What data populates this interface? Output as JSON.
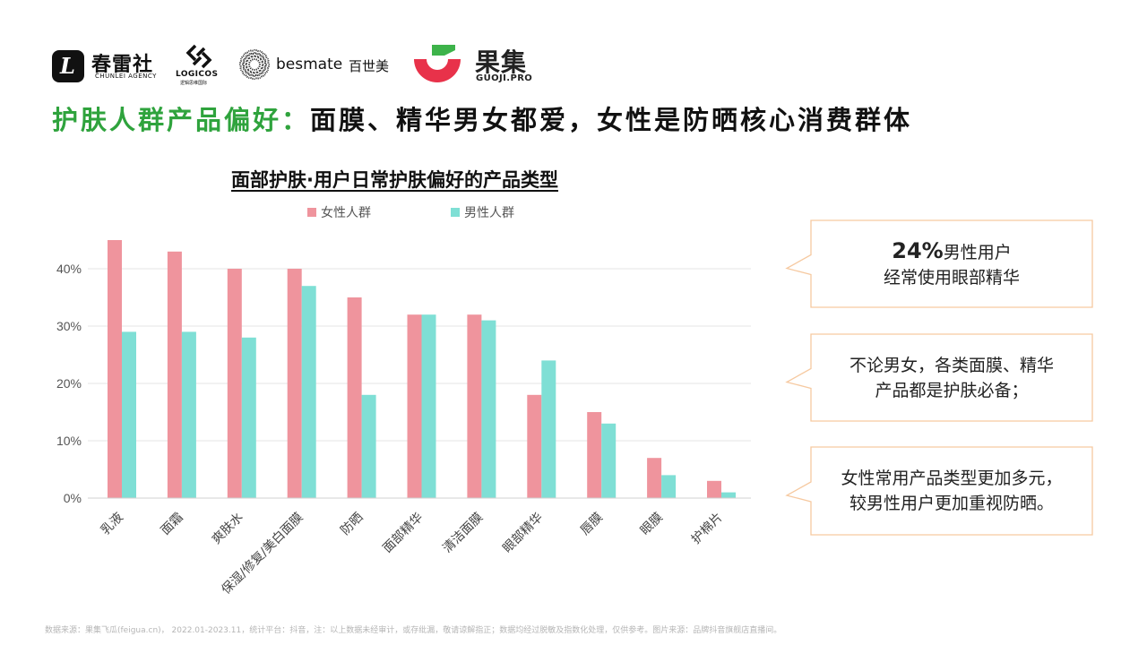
{
  "logos": {
    "chunlei_mark": "L",
    "chunlei_name": "春雷社",
    "chunlei_sub": "CHUNLEI AGENCY",
    "logicos_name": "LOGICOS",
    "logicos_sub": "逻辑思维国际",
    "besmate_name": "besmate",
    "besmate_cn": "百世美",
    "guoji_name": "果集",
    "guoji_sub": "GUOJI.PRO"
  },
  "headline": {
    "lead": "护肤人群产品偏好：",
    "rest": "面膜、精华男女都爱，女性是防晒核心消费群体"
  },
  "chart_data": {
    "type": "bar",
    "title": "面部护肤·用户日常护肤偏好的产品类型",
    "categories": [
      "乳液",
      "面霜",
      "爽肤水",
      "保湿/修复/美白面膜",
      "防晒",
      "面部精华",
      "清洁面膜",
      "眼部精华",
      "唇膜",
      "眼膜",
      "护棉片"
    ],
    "series": [
      {
        "name": "女性人群",
        "color": "#ef949d",
        "values": [
          45,
          43,
          40,
          40,
          35,
          32,
          32,
          18,
          15,
          7,
          3
        ]
      },
      {
        "name": "男性人群",
        "color": "#7fdfd5",
        "values": [
          29,
          29,
          28,
          37,
          18,
          32,
          31,
          24,
          13,
          4,
          1
        ]
      }
    ],
    "ylim": [
      0,
      40
    ],
    "yticks": [
      "0%",
      "10%",
      "20%",
      "30%",
      "40%"
    ],
    "grid": true,
    "legend": "top"
  },
  "callouts": [
    {
      "highlight": "24%",
      "line1": "男性用户",
      "line2": "经常使用眼部精华"
    },
    {
      "line1": "不论男女，各类面膜、精华",
      "line2": "产品都是护肤必备；"
    },
    {
      "line1": "女性常用产品类型更加多元，",
      "line2": "较男性用户更加重视防晒。"
    }
  ],
  "callout_border_color": "#f6c9a0",
  "source": "数据来源：果集飞瓜(feigua.cn)， 2022.01-2023.11，统计平台：抖音，注：以上数据未经审计，或存纰漏，敬请谅解指正；数据均经过脱敏及指数化处理，仅供参考。图片来源：品牌抖音旗舰店直播间。"
}
